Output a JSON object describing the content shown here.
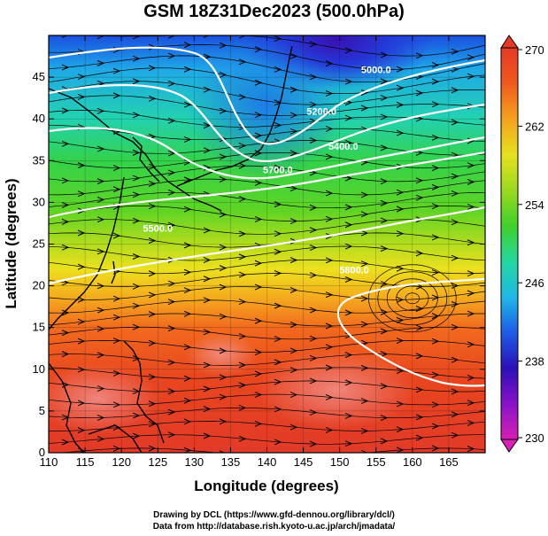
{
  "title": "GSM 18Z31Dec2023 (500.0hPa)",
  "credits": {
    "line1": "Drawing by DCL (https://www.gfd-dennou.org/library/dcl/)",
    "line2": "Data from http://database.rish.kyoto-u.ac.jp/arch/jmadata/"
  },
  "map": {
    "xlabel": "Longitude (degrees)",
    "ylabel": "Latitude  (degrees)",
    "xlim": [
      110,
      170
    ],
    "ylim": [
      0,
      50
    ],
    "xticks": [
      "110",
      "115",
      "120",
      "125",
      "130",
      "135",
      "140",
      "145",
      "150",
      "155",
      "160",
      "165"
    ],
    "yticks": [
      "0",
      "5",
      "10",
      "15",
      "20",
      "25",
      "30",
      "35",
      "40",
      "45"
    ],
    "contour_labels": [
      {
        "text": "5400.0",
        "lon": 150.5,
        "lat": 36.3
      },
      {
        "text": "5700.0",
        "lon": 141.5,
        "lat": 33.5
      },
      {
        "text": "5200.0",
        "lon": 147.5,
        "lat": 40.5
      },
      {
        "text": "5000.0",
        "lon": 155,
        "lat": 45.5
      },
      {
        "text": "5500.0",
        "lon": 125,
        "lat": 26.5
      },
      {
        "text": "5800.0",
        "lon": 152,
        "lat": 21.5
      }
    ]
  },
  "colorbar": {
    "ticks": [
      "270",
      "262",
      "254",
      "246",
      "238",
      "230"
    ],
    "min": 230,
    "max": 270,
    "colors": [
      "#d91fb5",
      "#8a12c8",
      "#2b0fb8",
      "#1e5be8",
      "#1fb8e6",
      "#23d7a0",
      "#3fd12b",
      "#9ad91e",
      "#e6e01e",
      "#f5a21e",
      "#f05a1e",
      "#e53a2a"
    ]
  }
}
